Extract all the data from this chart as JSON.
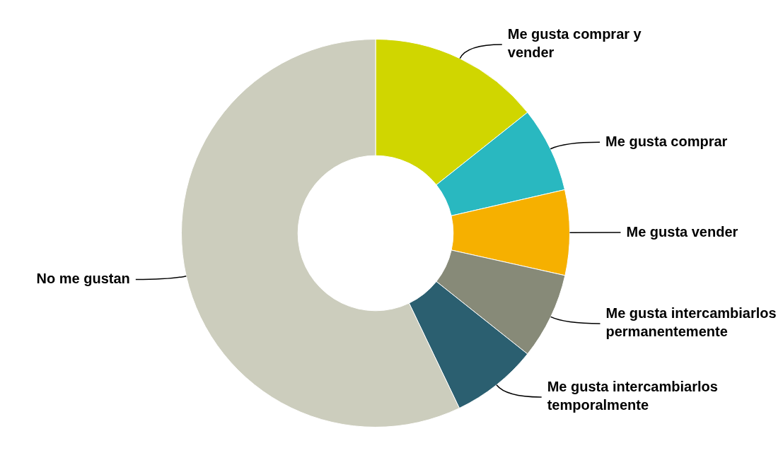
{
  "chart_data": {
    "type": "donut",
    "categories": [
      "Me gusta comprar y vender",
      "Me gusta comprar",
      "Me gusta vender",
      "Me gusta intercambiarlos permanentemente",
      "Me gusta intercambiarlos temporalmente",
      "No me gustan"
    ],
    "values": [
      14.3,
      7.1,
      7.1,
      7.2,
      7.2,
      57.1
    ],
    "colors": [
      "#d0d600",
      "#29b8c0",
      "#f6b000",
      "#878a78",
      "#2b5f70",
      "#cccdbd"
    ],
    "legend": false
  }
}
